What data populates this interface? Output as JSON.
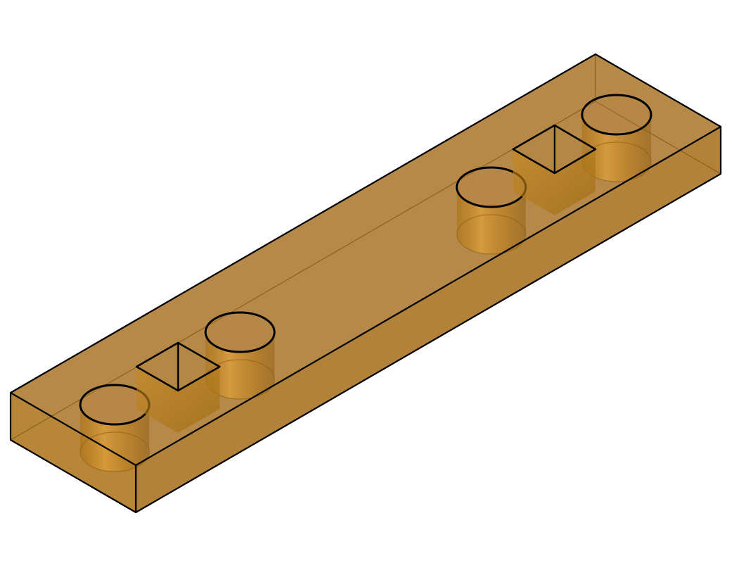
{
  "part": {
    "material_color": "#b07a1f",
    "edge_color": "#000000",
    "render_mode": "translucent-shaded-with-edges",
    "features": {
      "through_holes": 4,
      "square_pyramid_pockets": 2
    }
  }
}
